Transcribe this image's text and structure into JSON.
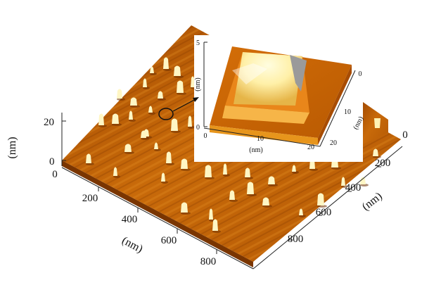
{
  "colors": {
    "background": "#ffffff",
    "surface_dark": "#8a3d00",
    "surface_mid": "#c46a08",
    "surface_light": "#e79a25",
    "peak": "#fff2b0",
    "inset_grey": "#9a9a9a"
  },
  "main_plot": {
    "z_axis": {
      "label": "(nm)",
      "ticks": [
        "0",
        "20"
      ]
    },
    "x_axis": {
      "label": "(nm)",
      "ticks": [
        "0",
        "200",
        "400",
        "600",
        "800"
      ]
    },
    "y_axis": {
      "label": "(nm)",
      "ticks": [
        "0",
        "200",
        "400",
        "600",
        "800"
      ]
    }
  },
  "inset_plot": {
    "z_axis": {
      "label": "(nm)",
      "ticks": [
        "0",
        "5"
      ]
    },
    "x_axis": {
      "label": "(nm)",
      "ticks": [
        "0",
        "10",
        "20"
      ]
    },
    "y_axis": {
      "label": "(nm)",
      "ticks": [
        "0",
        "10",
        "20"
      ]
    }
  }
}
